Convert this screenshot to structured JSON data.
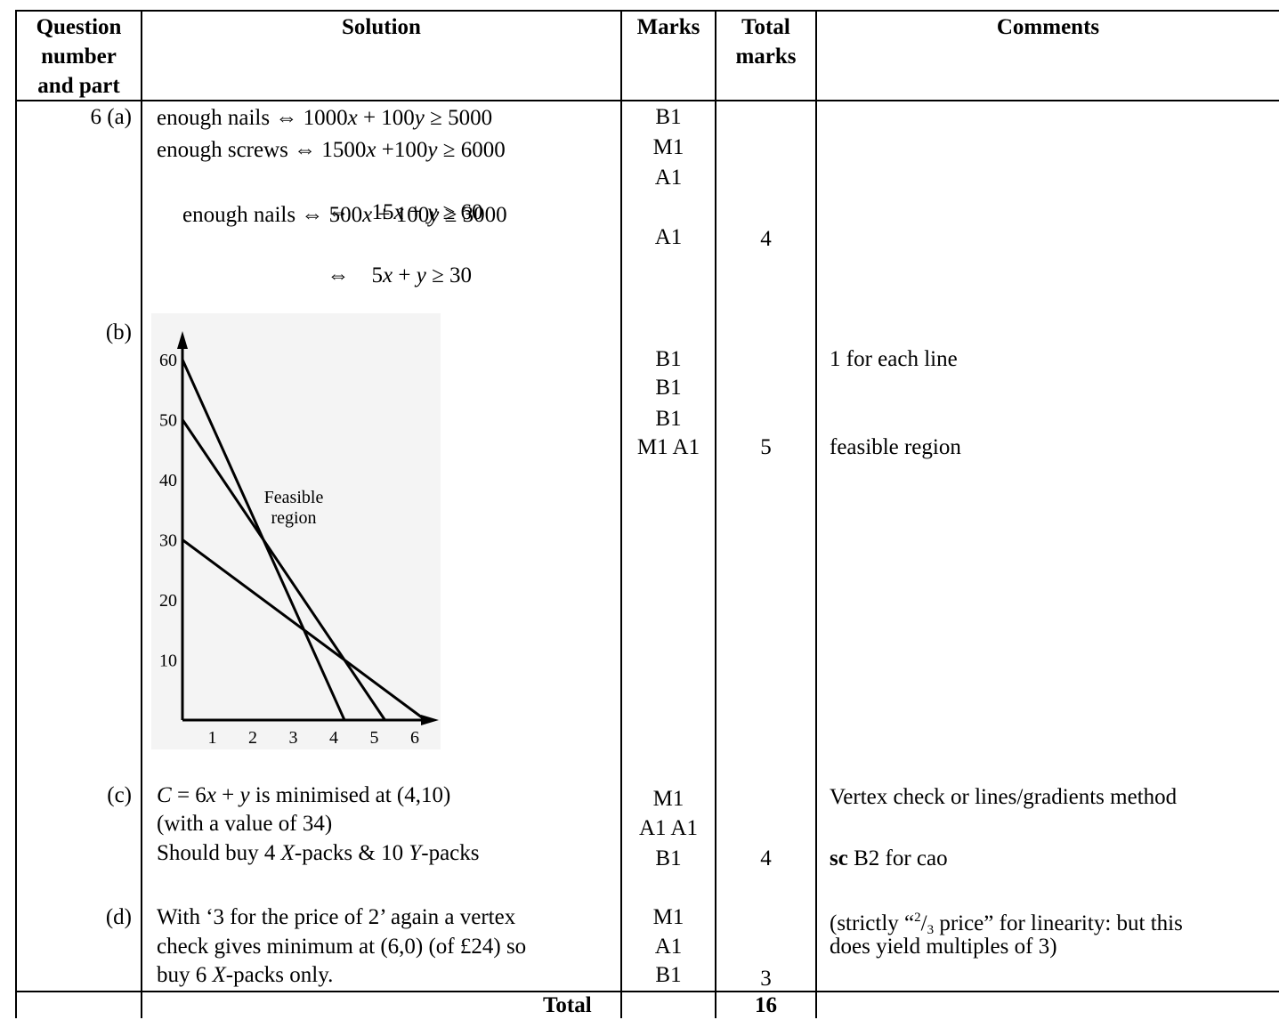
{
  "headers": {
    "question": [
      "Question",
      "number",
      "and part"
    ],
    "solution": "Solution",
    "marks": "Marks",
    "total_marks": [
      "Total",
      "marks"
    ],
    "comments": "Comments"
  },
  "q6a": {
    "part": "6 (a)",
    "lines": [
      {
        "pre": "enough nails ⇔ 1000",
        "v1": "x",
        "mid": " + 100",
        "v2": "y",
        "post": " ≥ 5000"
      },
      {
        "pre": "enough screws ⇔ 1500",
        "v1": "x",
        "mid": " +100",
        "v2": "y",
        "post": " ≥ 6000"
      },
      {
        "pre": "⇔    15",
        "v1": "x",
        "mid": " + ",
        "v2": "y",
        "post": " ≥ 60"
      },
      {
        "pre": "enough nails ⇔ 500",
        "v1": "x",
        "mid": " + 100",
        "v2": "y",
        "post": " ≥ 3000"
      },
      {
        "pre": "⇔    5",
        "v1": "x",
        "mid": " + ",
        "v2": "y",
        "post": " ≥ 30"
      }
    ],
    "marks": [
      "B1",
      "M1",
      "A1",
      "A1"
    ],
    "total": "4"
  },
  "q6b": {
    "part": "(b)",
    "marks": [
      "B1",
      "B1",
      "B1",
      "M1 A1"
    ],
    "total": "5",
    "comments": [
      "1 for each line",
      "feasible region"
    ],
    "graph": {
      "y_ticks": [
        "60",
        "50",
        "40",
        "30",
        "20",
        "10"
      ],
      "x_ticks": [
        "1",
        "2",
        "3",
        "4",
        "5",
        "6"
      ],
      "label_line1": "Feasible",
      "label_line2": "region"
    }
  },
  "chart_data": {
    "type": "line",
    "title": "",
    "xlabel": "",
    "ylabel": "",
    "xlim": [
      0,
      6
    ],
    "ylim": [
      0,
      60
    ],
    "x_ticks": [
      1,
      2,
      3,
      4,
      5,
      6
    ],
    "y_ticks": [
      10,
      20,
      30,
      40,
      50,
      60
    ],
    "series": [
      {
        "values": [
          [
            0,
            60
          ],
          [
            4,
            0
          ]
        ]
      },
      {
        "values": [
          [
            0,
            50
          ],
          [
            5,
            0
          ]
        ]
      },
      {
        "values": [
          [
            0,
            30
          ],
          [
            6,
            0
          ]
        ]
      }
    ],
    "annotations": [
      "Feasible region"
    ]
  },
  "q6c": {
    "part": "(c)",
    "line1": {
      "pre": "",
      "v1": "C",
      "mid": " = 6",
      "v2": "x",
      "mid2": " + ",
      "v3": "y",
      "post": " is minimised at (4,10)"
    },
    "line2": "(with a value of 34)",
    "line3": {
      "pre": "Should buy 4 ",
      "v1": "X",
      "mid": "-packs & 10 ",
      "v2": "Y",
      "post": "-packs"
    },
    "marks": [
      "M1",
      "A1 A1",
      "B1"
    ],
    "total": "4",
    "comment1": "Vertex check or lines/gradients method",
    "comment2_bold": "sc",
    "comment2_rest": " B2 for cao"
  },
  "q6d": {
    "part": "(d)",
    "line1": "With ‘3 for the price of 2’ again a vertex",
    "line2": "check gives minimum at (6,0) (of £24) so",
    "line3_pre": "buy 6 ",
    "line3_var": "X",
    "line3_post": "-packs only.",
    "marks": [
      "M1",
      "A1",
      "B1"
    ],
    "total": "3",
    "comment1_pre": "(strictly “",
    "comment1_sup": "2",
    "comment1_slash": "/",
    "comment1_sub": "3",
    "comment1_post": " price” for linearity: but  this",
    "comment2": "does yield multiples of  3)"
  },
  "footer": {
    "total_label": "Total",
    "total_value": "16"
  }
}
